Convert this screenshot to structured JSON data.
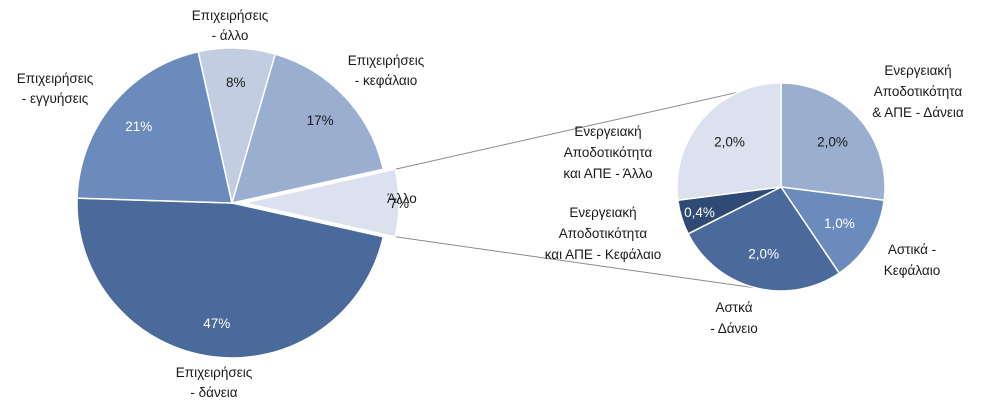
{
  "chart_data": {
    "type": "pie",
    "main_pie": {
      "slices": [
        {
          "name": "Άλλο",
          "label_lines": [
            "Άλλο"
          ],
          "value": 7,
          "value_label": "7%",
          "color": "#dbe1ee",
          "exploded": true
        },
        {
          "name": "Επιχειρήσεις - δάνεια",
          "label_lines": [
            "Επιχειρήσεις",
            "- δάνεια"
          ],
          "value": 47,
          "value_label": "47%",
          "color": "#4a6a9c"
        },
        {
          "name": "Επιχειρήσεις - εγγυήσεις",
          "label_lines": [
            "Επιχειρήσεις",
            "- εγγυήσεις"
          ],
          "value": 21,
          "value_label": "21%",
          "color": "#6a8bbb"
        },
        {
          "name": "Επιχειρήσεις - άλλο",
          "label_lines": [
            "Επιχειρήσεις",
            "- άλλο"
          ],
          "value": 8,
          "value_label": "8%",
          "color": "#c3cde1"
        },
        {
          "name": "Επιχειρήσεις - κεφάλαιο",
          "label_lines": [
            "Επιχειρήσεις",
            "- κεφάλαιο"
          ],
          "value": 17,
          "value_label": "17%",
          "color": "#9aaecf"
        }
      ]
    },
    "sub_pie": {
      "parent": "Άλλο",
      "slices": [
        {
          "name": "Ενεργειακή Αποδοτικότητα & ΑΠΕ - Δάνεια",
          "label_lines": [
            "Ενεργειακή",
            "Αποδοτικότητα",
            "& ΑΠΕ - Δάνεια"
          ],
          "value": 2.0,
          "value_label": "2,0%",
          "color": "#9aaecf"
        },
        {
          "name": "Αστικά - Κεφάλαιο",
          "label_lines": [
            "Αστικά -",
            "Κεφάλαιο"
          ],
          "value": 1.0,
          "value_label": "1,0%",
          "color": "#6a8bbb"
        },
        {
          "name": "Αστκά - Δάνειο",
          "label_lines": [
            "Αστκά",
            "- Δάνειο"
          ],
          "value": 2.0,
          "value_label": "2,0%",
          "color": "#4a6a9c"
        },
        {
          "name": "Ενεργειακή Αποδοτικότητα και ΑΠΕ - Κεφάλαιο",
          "label_lines": [
            "Ενεργειακή",
            "Αποδοτικότητα",
            "και ΑΠΕ - Κεφάλαιο"
          ],
          "value": 0.4,
          "value_label": "0,4%",
          "color": "#2f4a74"
        },
        {
          "name": "Ενεργειακή Αποδοτικότητα και ΑΠΕ - Άλλο",
          "label_lines": [
            "Ενεργειακή",
            "Αποδοτικότητα",
            "και ΑΠΕ - Άλλο"
          ],
          "value": 2.0,
          "value_label": "2,0%",
          "color": "#dbe1ee"
        }
      ]
    },
    "legend": "none"
  }
}
